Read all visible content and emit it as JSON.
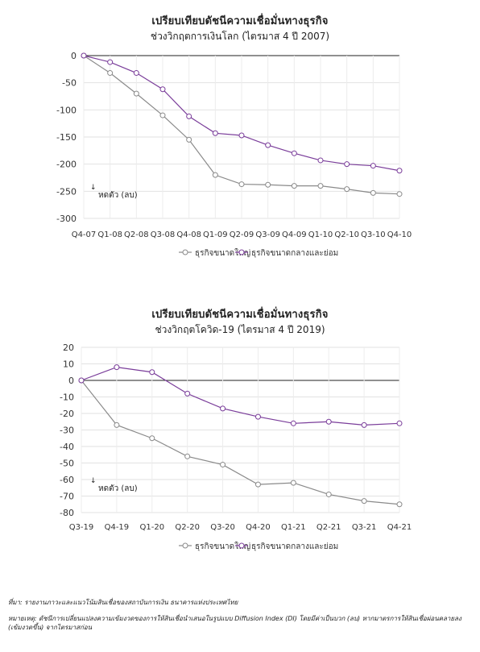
{
  "charts": [
    {
      "title": "เปรียบเทียบดัชนีความเชื่อมั่นทางธุรกิจ",
      "subtitle": "ช่วงวิกฤตการเงินโลก (ไตรมาส 4 ปี 2007)",
      "annotation": "หดตัว (ลบ)",
      "legend": [
        "ธุรกิจขนาดใหญ่",
        "ธุรกิจขนาดกลางและย่อม"
      ],
      "chart_data": {
        "type": "line",
        "categories": [
          "Q4-07",
          "Q1-08",
          "Q2-08",
          "Q3-08",
          "Q4-08",
          "Q1-09",
          "Q2-09",
          "Q3-09",
          "Q4-09",
          "Q1-10",
          "Q2-10",
          "Q3-10",
          "Q4-10"
        ],
        "ylim": [
          -300,
          0
        ],
        "yticks": [
          0,
          -50,
          -100,
          -150,
          -200,
          -250,
          -300
        ],
        "series": [
          {
            "name": "ธุรกิจขนาดใหญ่",
            "color": "#8a8a8a",
            "values": [
              0,
              -32,
              -70,
              -110,
              -155,
              -220,
              -237,
              -238,
              -240,
              -240,
              -246,
              -253,
              -255
            ]
          },
          {
            "name": "ธุรกิจขนาดกลางและย่อม",
            "color": "#7a3d9a",
            "values": [
              0,
              -12,
              -32,
              -62,
              -112,
              -143,
              -147,
              -165,
              -180,
              -193,
              -200,
              -203,
              -212
            ]
          }
        ]
      }
    },
    {
      "title": "เปรียบเทียบดัชนีความเชื่อมั่นทางธุรกิจ",
      "subtitle": "ช่วงวิกฤตโควิด-19 (ไตรมาส 4 ปี 2019)",
      "annotation": "หดตัว (ลบ)",
      "legend": [
        "ธุรกิจขนาดใหญ่",
        "ธุรกิจขนาดกลางและย่อม"
      ],
      "chart_data": {
        "type": "line",
        "categories": [
          "Q3-19",
          "Q4-19",
          "Q1-20",
          "Q2-20",
          "Q3-20",
          "Q4-20",
          "Q1-21",
          "Q2-21",
          "Q3-21",
          "Q4-21"
        ],
        "ylim": [
          -80,
          20
        ],
        "yticks": [
          20,
          10,
          0,
          -10,
          -20,
          -30,
          -40,
          -50,
          -60,
          -70,
          -80
        ],
        "series": [
          {
            "name": "ธุรกิจขนาดใหญ่",
            "color": "#8a8a8a",
            "values": [
              0,
              -27,
              -35,
              -46,
              -51,
              -63,
              -62,
              -69,
              -73,
              -75
            ]
          },
          {
            "name": "ธุรกิจขนาดกลางและย่อม",
            "color": "#7a3d9a",
            "values": [
              0,
              8,
              5,
              -8,
              -17,
              -22,
              -26,
              -25,
              -27,
              -26
            ]
          }
        ]
      }
    }
  ],
  "notes": {
    "source": "ที่มา: รายงานภาวะและแนวโน้มสินเชื่อของสถาบันการเงิน ธนาคารแห่งประเทศไทย",
    "remark": "หมายเหตุ: ดัชนีการเปลี่ยนแปลงความเข้มงวดของการให้สินเชื่อนำเสนอในรูปแบบ Diffusion Index (DI) โดยมีค่าเป็นบวก (ลบ) หากมาตรการให้สินเชื่อผ่อนคลายลง (เข้มงวดขึ้น) จากไตรมาสก่อน"
  }
}
